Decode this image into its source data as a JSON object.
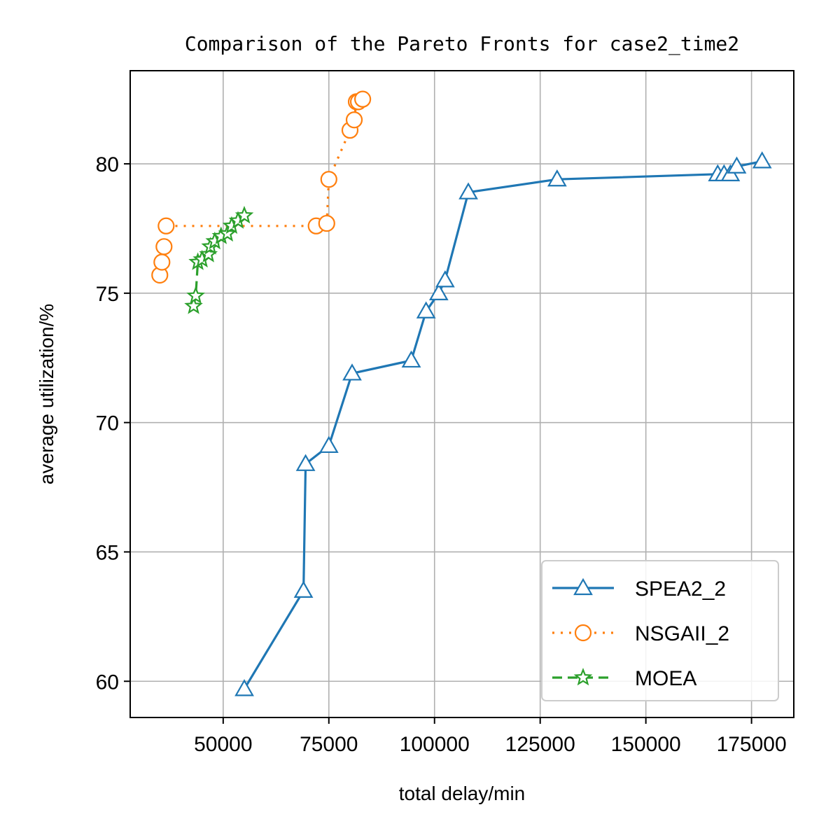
{
  "chart_data": {
    "type": "line",
    "title": "Comparison of the Pareto Fronts for case2_time2",
    "xlabel": "total delay/min",
    "ylabel": "average utilization/%",
    "xlim": [
      28000,
      185000
    ],
    "ylim": [
      58.6,
      83.6
    ],
    "xticks": [
      50000,
      75000,
      100000,
      125000,
      150000,
      175000
    ],
    "xtick_labels": [
      "50000",
      "75000",
      "100000",
      "125000",
      "150000",
      "175000"
    ],
    "yticks": [
      60,
      65,
      70,
      75,
      80
    ],
    "ytick_labels": [
      "60",
      "65",
      "70",
      "75",
      "80"
    ],
    "grid": true,
    "legend_position": "lower-right",
    "series": [
      {
        "name": "SPEA2_2",
        "color": "#1f77b4",
        "marker": "triangle",
        "linestyle": "solid",
        "x": [
          55000,
          69000,
          69500,
          75000,
          80500,
          94500,
          98000,
          101000,
          102500,
          108000,
          129000,
          167000,
          168500,
          170000,
          171500,
          177500
        ],
        "y": [
          59.7,
          63.5,
          68.4,
          69.1,
          71.9,
          72.4,
          74.3,
          75.0,
          75.5,
          78.9,
          79.4,
          79.6,
          79.6,
          79.6,
          79.9,
          80.1
        ]
      },
      {
        "name": "NSGAII_2",
        "color": "#ff7f0e",
        "marker": "circle",
        "linestyle": "dotted",
        "x": [
          35000,
          35500,
          36000,
          36500,
          72000,
          74500,
          75000,
          80000,
          81000,
          81500,
          82000,
          83000
        ],
        "y": [
          75.7,
          76.2,
          76.8,
          77.6,
          77.6,
          77.7,
          79.4,
          81.3,
          81.7,
          82.4,
          82.4,
          82.5
        ]
      },
      {
        "name": "MOEA",
        "color": "#2ca02c",
        "marker": "star",
        "linestyle": "dashed",
        "x": [
          43000,
          43500,
          44000,
          45000,
          46500,
          47000,
          48000,
          49500,
          51000,
          52000,
          53500,
          55000
        ],
        "y": [
          74.5,
          74.9,
          76.2,
          76.3,
          76.5,
          76.8,
          77.0,
          77.2,
          77.3,
          77.6,
          77.8,
          78.0
        ]
      }
    ]
  }
}
